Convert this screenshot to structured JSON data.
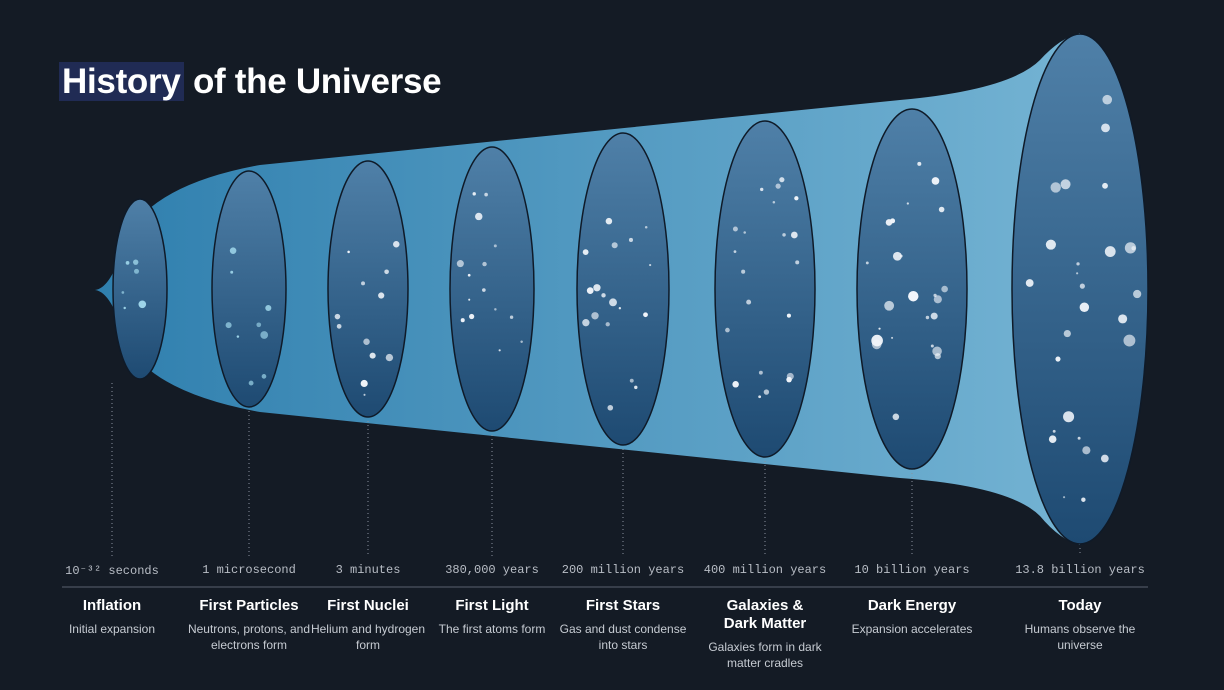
{
  "title": {
    "highlight": "History",
    "rest": "of the Universe"
  },
  "stages": [
    {
      "time": "10⁻³² seconds",
      "name": "Inflation",
      "description": "Initial expansion"
    },
    {
      "time": "1 microsecond",
      "name": "First Particles",
      "description": "Neutrons, protons, and electrons form"
    },
    {
      "time": "3 minutes",
      "name": "First Nuclei",
      "description": "Helium and hydrogen form"
    },
    {
      "time": "380,000 years",
      "name": "First Light",
      "description": "The first atoms form"
    },
    {
      "time": "200 million years",
      "name": "First Stars",
      "description": "Gas and dust condense into stars"
    },
    {
      "time": "400 million years",
      "name": "Galaxies & Dark Matter",
      "description": "Galaxies form in dark matter cradles"
    },
    {
      "time": "10 billion years",
      "name": "Dark Energy",
      "description": "Expansion accelerates"
    },
    {
      "time": "13.8 billion years",
      "name": "Today",
      "description": "Humans observe the universe"
    }
  ]
}
